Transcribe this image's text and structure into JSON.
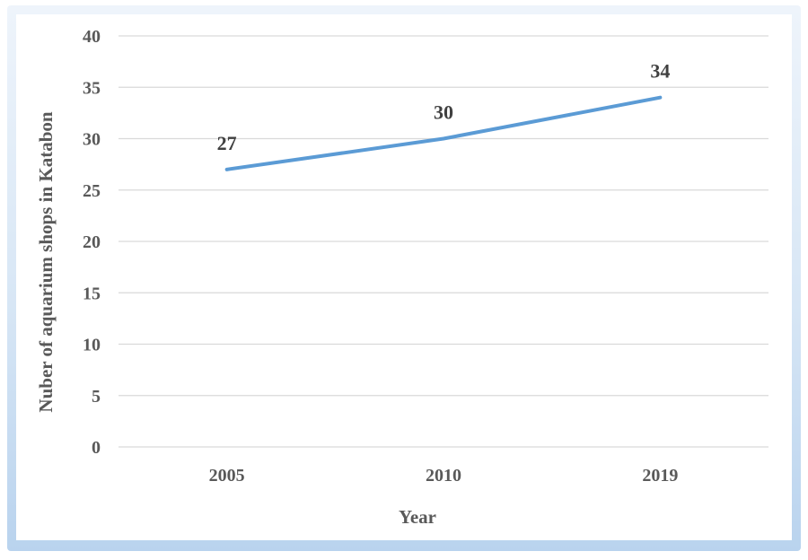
{
  "chart_data": {
    "type": "line",
    "title": "",
    "xlabel": "Year",
    "ylabel": "Nuber of aquarium shops in Katabon",
    "categories": [
      "2005",
      "2010",
      "2019"
    ],
    "series": [
      {
        "values": [
          27,
          30,
          34
        ]
      }
    ],
    "data_labels": [
      "27",
      "30",
      "34"
    ],
    "ylim": [
      0,
      40
    ],
    "yticks": [
      "0",
      "5",
      "10",
      "15",
      "20",
      "25",
      "30",
      "35",
      "40"
    ],
    "grid": true,
    "legend": "none",
    "line_color": "#5b9bd5",
    "grid_color": "#d9d9d9"
  }
}
